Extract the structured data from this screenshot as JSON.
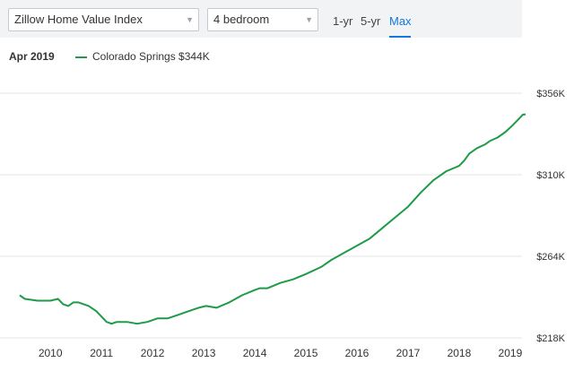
{
  "controls": {
    "index_select": "Zillow Home Value Index",
    "bedroom_select": "4 bedroom",
    "ranges": [
      "1-yr",
      "5-yr",
      "Max"
    ],
    "active_range": "Max"
  },
  "readout": {
    "date": "Apr 2019",
    "series_label": "Colorado Springs $344K"
  },
  "colors": {
    "series": "#1e9b47",
    "grid": "#e6e6e6",
    "active": "#1277e1"
  },
  "chart_data": {
    "type": "line",
    "title": "",
    "xlabel": "",
    "ylabel": "",
    "xlim": [
      2009.4,
      2019.3
    ],
    "ylim": [
      218,
      356
    ],
    "y_ticks": [
      218,
      264,
      310,
      356
    ],
    "y_tick_labels": [
      "$218K",
      "$264K",
      "$310K",
      "$356K"
    ],
    "x_ticks": [
      "2010",
      "2011",
      "2012",
      "2013",
      "2014",
      "2015",
      "2016",
      "2017",
      "2018",
      "2019"
    ],
    "grid": true,
    "legend": "top-left",
    "series": [
      {
        "name": "Colorado Springs",
        "x": [
          2009.4,
          2009.5,
          2009.75,
          2010.0,
          2010.15,
          2010.25,
          2010.35,
          2010.45,
          2010.55,
          2010.75,
          2010.9,
          2011.0,
          2011.1,
          2011.2,
          2011.3,
          2011.5,
          2011.7,
          2011.9,
          2012.1,
          2012.3,
          2012.5,
          2012.7,
          2012.9,
          2013.05,
          2013.25,
          2013.5,
          2013.75,
          2014.0,
          2014.1,
          2014.25,
          2014.5,
          2014.75,
          2015.0,
          2015.3,
          2015.5,
          2015.75,
          2016.0,
          2016.25,
          2016.5,
          2016.75,
          2017.0,
          2017.25,
          2017.5,
          2017.75,
          2018.0,
          2018.1,
          2018.2,
          2018.35,
          2018.5,
          2018.6,
          2018.75,
          2018.9,
          2019.05,
          2019.15,
          2019.25,
          2019.3
        ],
        "y": [
          242,
          240,
          239,
          239,
          240,
          237,
          236,
          238,
          238,
          236,
          233,
          230,
          227,
          226,
          227,
          227,
          226,
          227,
          229,
          229,
          231,
          233,
          235,
          236,
          235,
          238,
          242,
          245,
          246,
          246,
          249,
          251,
          254,
          258,
          262,
          266,
          270,
          274,
          280,
          286,
          292,
          300,
          307,
          312,
          315,
          318,
          322,
          325,
          327,
          329,
          331,
          334,
          338,
          341,
          344,
          344
        ]
      }
    ]
  }
}
